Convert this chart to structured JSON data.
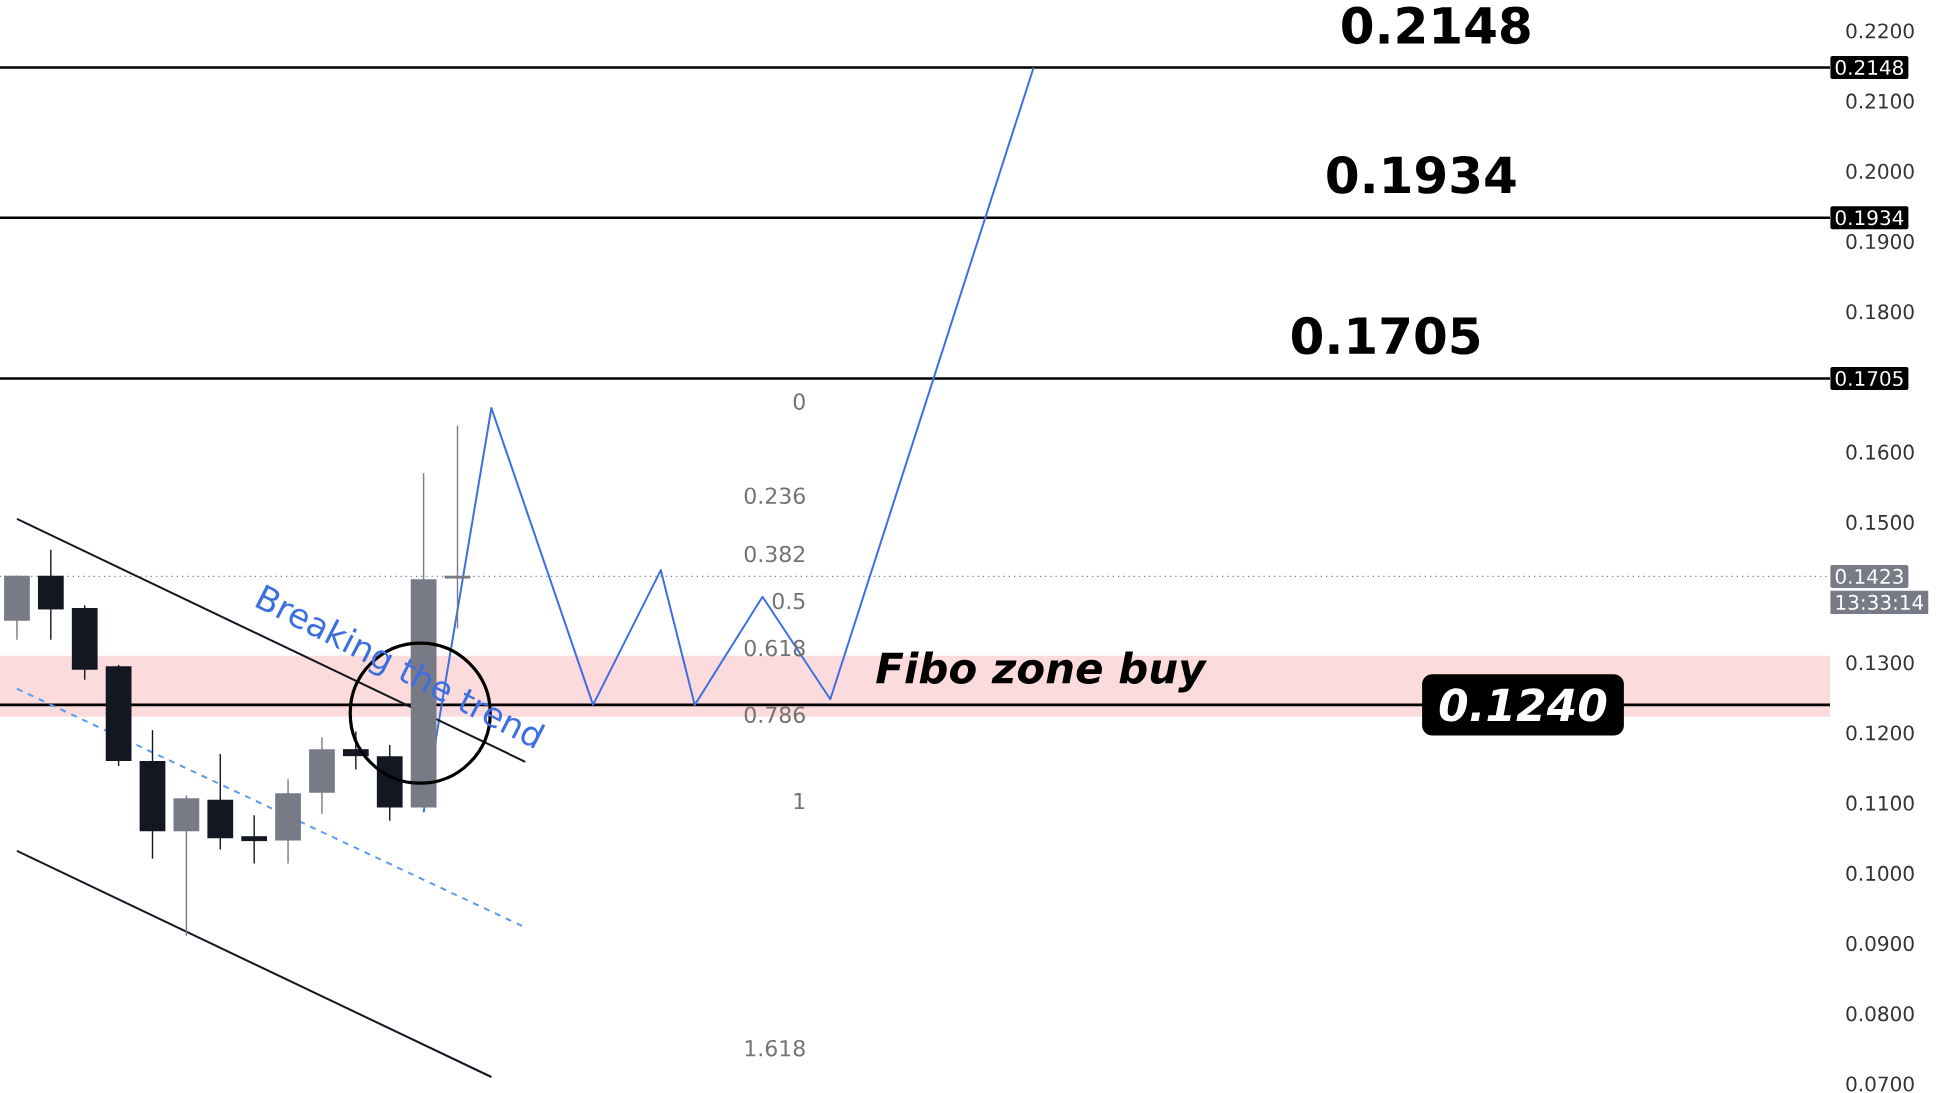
{
  "chart_data": {
    "type": "candlestick",
    "categories": [
      null,
      null,
      null,
      null,
      null,
      null,
      null,
      null,
      null,
      null,
      null,
      null,
      null,
      null,
      null,
      null,
      null,
      null,
      null,
      null,
      null,
      null,
      null,
      null,
      null,
      null,
      null,
      null,
      null,
      null,
      null,
      null,
      null,
      null,
      null,
      null,
      null,
      null,
      null,
      null,
      null,
      null,
      null,
      null,
      null,
      null,
      null,
      null,
      null,
      null,
      null,
      null,
      null,
      null
    ],
    "ohlc": [
      [
        0.136,
        0.1424,
        0.1333,
        0.1424
      ],
      [
        0.1424,
        0.1461,
        0.1333,
        0.1376
      ],
      [
        0.1378,
        0.1382,
        0.1276,
        0.129
      ],
      [
        0.1295,
        0.1297,
        0.1153,
        0.116
      ],
      [
        0.116,
        0.1204,
        0.1021,
        0.106
      ],
      [
        0.106,
        0.1111,
        0.0911,
        0.1107
      ],
      [
        0.1105,
        0.117,
        0.1034,
        0.105
      ],
      [
        0.1053,
        0.1083,
        0.1014,
        0.1046
      ],
      [
        0.1047,
        0.1134,
        0.1014,
        0.1114
      ],
      [
        0.1115,
        0.1194,
        0.1085,
        0.1177
      ],
      [
        0.1177,
        0.1202,
        0.1148,
        0.1167
      ],
      [
        0.1167,
        0.1183,
        0.1075,
        0.1094
      ],
      [
        0.1094,
        0.157,
        0.1094,
        0.1419
      ],
      [
        0.142,
        0.1638,
        0.1349,
        0.1424
      ],
      null,
      null,
      null,
      null,
      null,
      null,
      null,
      null,
      null,
      null,
      null,
      null,
      null,
      null,
      null,
      null,
      null,
      null,
      null,
      null,
      null,
      null,
      null,
      null,
      null,
      null,
      null,
      null,
      null,
      null,
      null,
      null,
      null,
      null,
      null,
      null,
      null,
      null,
      null,
      null
    ],
    "colors": [
      "#787b86",
      "#131722",
      "#131722",
      "#131722",
      "#131722",
      "#787b86",
      "#131722",
      "#131722",
      "#787b86",
      "#787b86",
      "#131722",
      "#131722",
      "#787b86",
      "#787b86",
      null,
      null,
      null,
      null,
      null,
      null,
      null,
      null,
      null,
      null,
      null,
      null,
      null,
      null,
      null,
      null,
      null,
      null,
      null,
      null,
      null,
      null,
      null,
      null,
      null,
      null,
      null,
      null,
      null,
      null,
      null,
      null,
      null,
      null,
      null,
      null,
      null,
      null,
      null,
      null
    ],
    "ylim": [
      0.07,
      0.22
    ],
    "yticks": [
      {
        "value": 0.07,
        "label": "0.0700"
      },
      {
        "value": 0.08,
        "label": "0.0800"
      },
      {
        "value": 0.09,
        "label": "0.0900"
      },
      {
        "value": 0.1,
        "label": "0.1000"
      },
      {
        "value": 0.11,
        "label": "0.1100"
      },
      {
        "value": 0.12,
        "label": "0.1200"
      },
      {
        "value": 0.13,
        "label": "0.1300"
      },
      {
        "value": 0.15,
        "label": "0.1500"
      },
      {
        "value": 0.16,
        "label": "0.1600"
      },
      {
        "value": 0.18,
        "label": "0.1800"
      },
      {
        "value": 0.19,
        "label": "0.1900"
      },
      {
        "value": 0.2,
        "label": "0.2000"
      },
      {
        "value": 0.21,
        "label": "0.2100"
      },
      {
        "value": 0.22,
        "label": "0.2200"
      }
    ],
    "tick_labels": "y",
    "series": [
      {
        "type": "line",
        "color": "#3d6fe0",
        "values": [
          null,
          null,
          null,
          null,
          null,
          null,
          null,
          null,
          null,
          null,
          null,
          null,
          0.1087,
          null,
          0.1663,
          null,
          null,
          0.124,
          null,
          0.1432,
          0.124,
          null,
          0.1394,
          null,
          0.1248,
          null,
          null,
          null,
          null,
          null,
          0.2148,
          null,
          null,
          null,
          null,
          null,
          null,
          null,
          null,
          null,
          null,
          null,
          null,
          null,
          null,
          null,
          null,
          null,
          null,
          null,
          null,
          null,
          null,
          null
        ]
      },
      {
        "type": "line",
        "color": "#131722",
        "values": [
          0.1505,
          null,
          null,
          null,
          null,
          null,
          null,
          null,
          null,
          null,
          null,
          null,
          null,
          null,
          null,
          0.1159,
          null,
          null,
          null,
          null,
          null,
          null,
          null,
          null,
          null,
          null,
          null,
          null,
          null,
          null,
          null,
          null,
          null,
          null,
          null,
          null,
          null,
          null,
          null,
          null,
          null,
          null,
          null,
          null,
          null,
          null,
          null,
          null,
          null,
          null,
          null,
          null,
          null,
          null
        ]
      },
      {
        "type": "line",
        "color": "#131722",
        "values": [
          0.1032,
          null,
          null,
          null,
          null,
          null,
          null,
          null,
          null,
          null,
          null,
          null,
          null,
          null,
          0.071,
          null,
          null,
          null,
          null,
          null,
          null,
          null,
          null,
          null,
          null,
          null,
          null,
          null,
          null,
          null,
          null,
          null,
          null,
          null,
          null,
          null,
          null,
          null,
          null,
          null,
          null,
          null,
          null,
          null,
          null,
          null,
          null,
          null,
          null,
          null,
          null,
          null,
          null,
          null
        ]
      },
      {
        "type": "line",
        "color": "#5b9cf0",
        "line_style": "dashed",
        "values": [
          0.1263,
          null,
          null,
          null,
          null,
          null,
          null,
          null,
          null,
          null,
          null,
          null,
          null,
          null,
          null,
          0.0923,
          null,
          null,
          null,
          null,
          null,
          null,
          null,
          null,
          null,
          null,
          null,
          null,
          null,
          null,
          null,
          null,
          null,
          null,
          null,
          null,
          null,
          null,
          null,
          null,
          null,
          null,
          null,
          null,
          null,
          null,
          null,
          null,
          null,
          null,
          null,
          null,
          null,
          null
        ]
      }
    ],
    "ref_lines": [
      {
        "axis": "y",
        "value": 0.2148,
        "label": "0.2148",
        "color": "#000000"
      },
      {
        "axis": "y",
        "value": 0.1934,
        "label": "0.1934",
        "color": "#000000"
      },
      {
        "axis": "y",
        "value": 0.1705,
        "label": "0.1705",
        "color": "#000000"
      },
      {
        "axis": "y",
        "value": 0.1423,
        "label": "0.1423",
        "color": "#787b86",
        "line_style": "dotted"
      },
      {
        "axis": "y",
        "value": 0.124,
        "color": "#000000"
      }
    ],
    "bands": [
      {
        "axis": "y",
        "from": 0.1223,
        "to": 0.131,
        "color": "#fcdbdd"
      }
    ],
    "annotations": [
      "0.2148",
      "0.1934",
      "0.1705",
      {
        "text": "0.1240",
        "y": 0.124
      },
      "Fibo zone buy",
      "Breaking the trend",
      "0",
      "0.236",
      "0.382",
      "0.5",
      "0.618",
      "0.786",
      "1",
      "1.618",
      "13:33:14"
    ]
  }
}
